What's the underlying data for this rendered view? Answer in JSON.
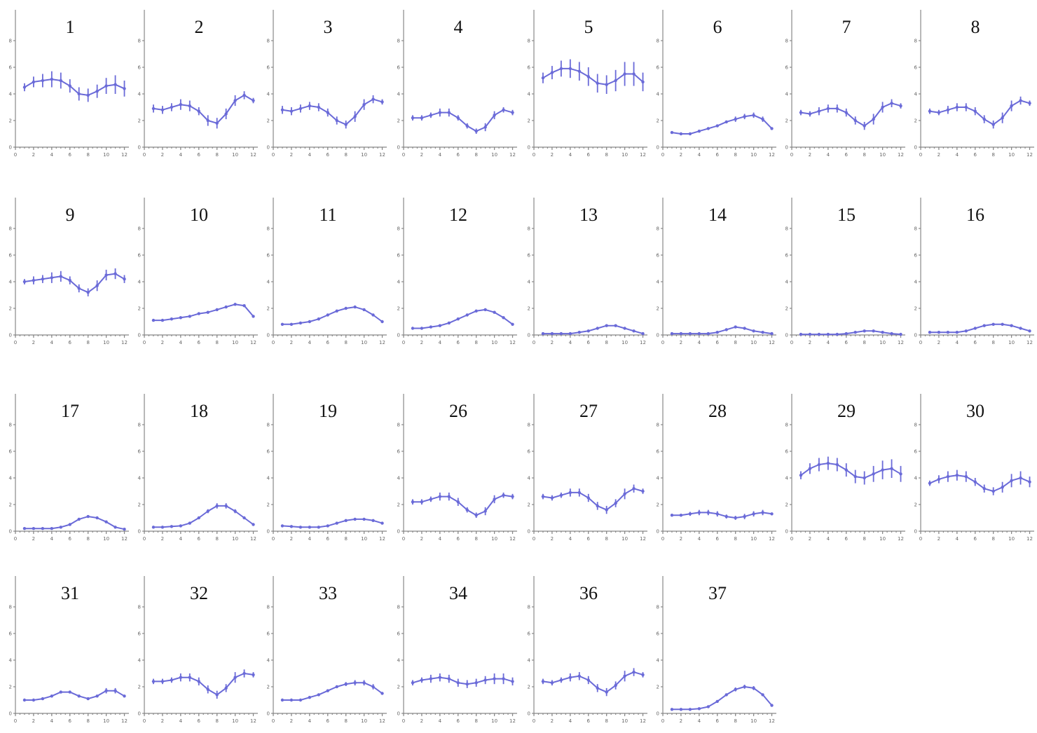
{
  "chart_data": {
    "type": "line",
    "x": [
      1,
      2,
      3,
      4,
      5,
      6,
      7,
      8,
      9,
      10,
      11,
      12
    ],
    "x_ticks": [
      0,
      2,
      4,
      6,
      8,
      10,
      12
    ],
    "y_ticks": [
      0,
      2,
      4,
      6,
      8
    ],
    "ylim": [
      0,
      8
    ],
    "xlim": [
      0,
      12.5
    ],
    "color": "#6a6ad8",
    "panels": [
      {
        "title": "1",
        "values": [
          4.5,
          4.9,
          5.0,
          5.1,
          5.0,
          4.6,
          4.0,
          3.9,
          4.2,
          4.6,
          4.7,
          4.4
        ],
        "err": [
          0.3,
          0.4,
          0.5,
          0.6,
          0.6,
          0.5,
          0.5,
          0.5,
          0.5,
          0.6,
          0.7,
          0.6
        ]
      },
      {
        "title": "2",
        "values": [
          2.9,
          2.8,
          3.0,
          3.2,
          3.1,
          2.7,
          2.0,
          1.8,
          2.5,
          3.5,
          3.9,
          3.5
        ],
        "err": [
          0.3,
          0.3,
          0.3,
          0.4,
          0.4,
          0.3,
          0.4,
          0.4,
          0.4,
          0.4,
          0.3,
          0.2
        ]
      },
      {
        "title": "3",
        "values": [
          2.8,
          2.7,
          2.9,
          3.1,
          3.0,
          2.6,
          2.0,
          1.7,
          2.3,
          3.2,
          3.6,
          3.4
        ],
        "err": [
          0.3,
          0.3,
          0.3,
          0.3,
          0.3,
          0.3,
          0.3,
          0.3,
          0.4,
          0.4,
          0.3,
          0.2
        ]
      },
      {
        "title": "4",
        "values": [
          2.2,
          2.2,
          2.4,
          2.6,
          2.6,
          2.2,
          1.6,
          1.2,
          1.5,
          2.4,
          2.8,
          2.6
        ],
        "err": [
          0.2,
          0.2,
          0.2,
          0.3,
          0.3,
          0.2,
          0.2,
          0.2,
          0.3,
          0.3,
          0.2,
          0.2
        ]
      },
      {
        "title": "5",
        "values": [
          5.2,
          5.6,
          5.9,
          5.9,
          5.7,
          5.3,
          4.8,
          4.7,
          5.0,
          5.5,
          5.5,
          4.9
        ],
        "err": [
          0.4,
          0.5,
          0.6,
          0.7,
          0.7,
          0.7,
          0.7,
          0.7,
          0.8,
          0.9,
          0.9,
          0.7
        ]
      },
      {
        "title": "6",
        "values": [
          1.1,
          1.0,
          1.0,
          1.2,
          1.4,
          1.6,
          1.9,
          2.1,
          2.3,
          2.4,
          2.1,
          1.4
        ],
        "err": [
          0.1,
          0.1,
          0.1,
          0.1,
          0.1,
          0.1,
          0.1,
          0.2,
          0.2,
          0.2,
          0.2,
          0.1
        ]
      },
      {
        "title": "7",
        "values": [
          2.6,
          2.5,
          2.7,
          2.9,
          2.9,
          2.6,
          2.0,
          1.6,
          2.1,
          3.0,
          3.3,
          3.1
        ],
        "err": [
          0.2,
          0.2,
          0.3,
          0.3,
          0.3,
          0.3,
          0.3,
          0.3,
          0.4,
          0.4,
          0.3,
          0.2
        ]
      },
      {
        "title": "8",
        "values": [
          2.7,
          2.6,
          2.8,
          3.0,
          3.0,
          2.7,
          2.1,
          1.7,
          2.2,
          3.1,
          3.5,
          3.3
        ],
        "err": [
          0.2,
          0.2,
          0.3,
          0.3,
          0.3,
          0.3,
          0.3,
          0.3,
          0.4,
          0.4,
          0.3,
          0.2
        ]
      },
      {
        "title": "9",
        "values": [
          4.0,
          4.1,
          4.2,
          4.3,
          4.4,
          4.1,
          3.5,
          3.2,
          3.7,
          4.5,
          4.6,
          4.2
        ],
        "err": [
          0.2,
          0.3,
          0.3,
          0.4,
          0.4,
          0.3,
          0.3,
          0.3,
          0.4,
          0.4,
          0.4,
          0.3
        ]
      },
      {
        "title": "10",
        "values": [
          1.1,
          1.1,
          1.2,
          1.3,
          1.4,
          1.6,
          1.7,
          1.9,
          2.1,
          2.3,
          2.2,
          1.4
        ],
        "err": [
          0.1,
          0.1,
          0.1,
          0.1,
          0.1,
          0.1,
          0.1,
          0.1,
          0.1,
          0.1,
          0.1,
          0.1
        ]
      },
      {
        "title": "11",
        "values": [
          0.8,
          0.8,
          0.9,
          1.0,
          1.2,
          1.5,
          1.8,
          2.0,
          2.1,
          1.9,
          1.5,
          1.0
        ],
        "err": [
          0.05,
          0.05,
          0.05,
          0.05,
          0.1,
          0.1,
          0.1,
          0.1,
          0.1,
          0.1,
          0.1,
          0.1
        ]
      },
      {
        "title": "12",
        "values": [
          0.5,
          0.5,
          0.6,
          0.7,
          0.9,
          1.2,
          1.5,
          1.8,
          1.9,
          1.7,
          1.3,
          0.8
        ],
        "err": [
          0.05,
          0.05,
          0.05,
          0.05,
          0.05,
          0.1,
          0.1,
          0.1,
          0.1,
          0.1,
          0.1,
          0.05
        ]
      },
      {
        "title": "13",
        "values": [
          0.1,
          0.1,
          0.1,
          0.1,
          0.2,
          0.3,
          0.5,
          0.7,
          0.7,
          0.5,
          0.3,
          0.1
        ],
        "err": [
          0.02,
          0.02,
          0.02,
          0.02,
          0.03,
          0.03,
          0.05,
          0.05,
          0.05,
          0.05,
          0.03,
          0.02
        ]
      },
      {
        "title": "14",
        "values": [
          0.1,
          0.1,
          0.1,
          0.1,
          0.1,
          0.2,
          0.4,
          0.6,
          0.5,
          0.3,
          0.2,
          0.1
        ],
        "err": [
          0.02,
          0.02,
          0.02,
          0.02,
          0.02,
          0.03,
          0.04,
          0.05,
          0.05,
          0.04,
          0.03,
          0.02
        ]
      },
      {
        "title": "15",
        "values": [
          0.05,
          0.05,
          0.05,
          0.05,
          0.05,
          0.1,
          0.2,
          0.3,
          0.3,
          0.2,
          0.1,
          0.05
        ],
        "err": [
          0.01,
          0.01,
          0.01,
          0.01,
          0.01,
          0.02,
          0.03,
          0.03,
          0.03,
          0.03,
          0.02,
          0.01
        ]
      },
      {
        "title": "16",
        "values": [
          0.2,
          0.2,
          0.2,
          0.2,
          0.3,
          0.5,
          0.7,
          0.8,
          0.8,
          0.7,
          0.5,
          0.3
        ],
        "err": [
          0.03,
          0.03,
          0.03,
          0.03,
          0.04,
          0.05,
          0.06,
          0.07,
          0.07,
          0.07,
          0.05,
          0.04
        ]
      },
      {
        "title": "17",
        "values": [
          0.2,
          0.2,
          0.2,
          0.2,
          0.3,
          0.5,
          0.9,
          1.1,
          1.0,
          0.7,
          0.3,
          0.15
        ],
        "err": [
          0.03,
          0.03,
          0.03,
          0.03,
          0.04,
          0.05,
          0.08,
          0.1,
          0.1,
          0.08,
          0.05,
          0.03
        ]
      },
      {
        "title": "18",
        "values": [
          0.3,
          0.3,
          0.35,
          0.4,
          0.6,
          1.0,
          1.5,
          1.9,
          1.9,
          1.5,
          1.0,
          0.5
        ],
        "err": [
          0.04,
          0.04,
          0.04,
          0.05,
          0.06,
          0.1,
          0.15,
          0.2,
          0.2,
          0.15,
          0.1,
          0.06
        ]
      },
      {
        "title": "19",
        "values": [
          0.4,
          0.35,
          0.3,
          0.3,
          0.3,
          0.4,
          0.6,
          0.8,
          0.9,
          0.9,
          0.8,
          0.6
        ],
        "err": [
          0.04,
          0.04,
          0.04,
          0.04,
          0.04,
          0.05,
          0.06,
          0.08,
          0.08,
          0.08,
          0.07,
          0.05
        ]
      },
      {
        "title": "26",
        "values": [
          2.2,
          2.2,
          2.4,
          2.6,
          2.6,
          2.2,
          1.6,
          1.2,
          1.5,
          2.4,
          2.7,
          2.6
        ],
        "err": [
          0.2,
          0.2,
          0.2,
          0.3,
          0.3,
          0.3,
          0.2,
          0.2,
          0.3,
          0.3,
          0.2,
          0.2
        ]
      },
      {
        "title": "27",
        "values": [
          2.6,
          2.5,
          2.7,
          2.9,
          2.9,
          2.5,
          1.9,
          1.6,
          2.1,
          2.8,
          3.2,
          3.0
        ],
        "err": [
          0.2,
          0.2,
          0.2,
          0.3,
          0.3,
          0.3,
          0.3,
          0.3,
          0.3,
          0.4,
          0.3,
          0.2
        ]
      },
      {
        "title": "28",
        "values": [
          1.2,
          1.2,
          1.3,
          1.4,
          1.4,
          1.3,
          1.1,
          1.0,
          1.1,
          1.3,
          1.4,
          1.3
        ],
        "err": [
          0.1,
          0.1,
          0.15,
          0.2,
          0.2,
          0.2,
          0.15,
          0.15,
          0.2,
          0.2,
          0.2,
          0.1
        ]
      },
      {
        "title": "29",
        "values": [
          4.2,
          4.7,
          5.0,
          5.1,
          5.0,
          4.6,
          4.1,
          4.0,
          4.3,
          4.6,
          4.7,
          4.3
        ],
        "err": [
          0.3,
          0.4,
          0.5,
          0.5,
          0.5,
          0.5,
          0.5,
          0.5,
          0.6,
          0.7,
          0.7,
          0.6
        ]
      },
      {
        "title": "30",
        "values": [
          3.6,
          3.9,
          4.1,
          4.2,
          4.1,
          3.7,
          3.2,
          3.0,
          3.3,
          3.8,
          4.0,
          3.7
        ],
        "err": [
          0.2,
          0.3,
          0.4,
          0.4,
          0.4,
          0.3,
          0.3,
          0.3,
          0.4,
          0.5,
          0.5,
          0.4
        ]
      },
      {
        "title": "31",
        "values": [
          1.0,
          1.0,
          1.1,
          1.3,
          1.6,
          1.6,
          1.3,
          1.1,
          1.3,
          1.7,
          1.7,
          1.3
        ],
        "err": [
          0.05,
          0.05,
          0.05,
          0.1,
          0.1,
          0.1,
          0.1,
          0.1,
          0.1,
          0.2,
          0.2,
          0.1
        ]
      },
      {
        "title": "32",
        "values": [
          2.4,
          2.4,
          2.5,
          2.7,
          2.7,
          2.4,
          1.8,
          1.4,
          1.9,
          2.7,
          3.0,
          2.9
        ],
        "err": [
          0.2,
          0.2,
          0.2,
          0.3,
          0.3,
          0.3,
          0.3,
          0.3,
          0.3,
          0.4,
          0.3,
          0.2
        ]
      },
      {
        "title": "33",
        "values": [
          1.0,
          1.0,
          1.0,
          1.2,
          1.4,
          1.7,
          2.0,
          2.2,
          2.3,
          2.3,
          2.0,
          1.5
        ],
        "err": [
          0.05,
          0.05,
          0.05,
          0.05,
          0.1,
          0.1,
          0.1,
          0.15,
          0.2,
          0.2,
          0.2,
          0.1
        ]
      },
      {
        "title": "34",
        "values": [
          2.3,
          2.5,
          2.6,
          2.7,
          2.6,
          2.3,
          2.2,
          2.3,
          2.5,
          2.6,
          2.6,
          2.4
        ],
        "err": [
          0.2,
          0.2,
          0.3,
          0.3,
          0.3,
          0.3,
          0.3,
          0.3,
          0.3,
          0.4,
          0.4,
          0.3
        ]
      },
      {
        "title": "36",
        "values": [
          2.4,
          2.3,
          2.5,
          2.7,
          2.8,
          2.5,
          1.9,
          1.6,
          2.1,
          2.8,
          3.1,
          2.9
        ],
        "err": [
          0.2,
          0.2,
          0.2,
          0.3,
          0.3,
          0.3,
          0.3,
          0.3,
          0.3,
          0.4,
          0.3,
          0.2
        ]
      },
      {
        "title": "37",
        "values": [
          0.3,
          0.3,
          0.3,
          0.35,
          0.5,
          0.9,
          1.4,
          1.8,
          2.0,
          1.9,
          1.4,
          0.6
        ],
        "err": [
          0.03,
          0.03,
          0.03,
          0.04,
          0.05,
          0.08,
          0.1,
          0.15,
          0.15,
          0.15,
          0.1,
          0.05
        ]
      }
    ]
  }
}
